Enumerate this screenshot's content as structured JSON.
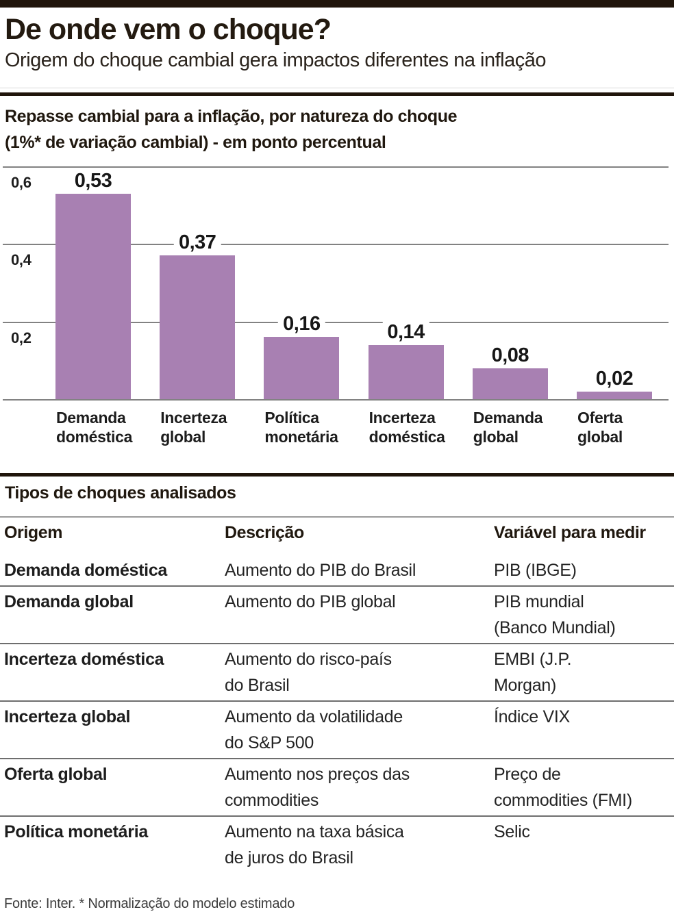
{
  "header": {
    "title": "De onde vem o choque?",
    "subtitle": "Origem do choque cambial gera impactos diferentes na inflação"
  },
  "chart_data": {
    "type": "bar",
    "title": "Repasse cambial para a inflação, por natureza do choque\n(1%* de variação cambial) - em ponto percentual",
    "categories": [
      "Demanda\ndoméstica",
      "Incerteza\nglobal",
      "Política\nmonetária",
      "Incerteza\ndoméstica",
      "Demanda\nglobal",
      "Oferta\nglobal"
    ],
    "values": [
      0.53,
      0.37,
      0.16,
      0.14,
      0.08,
      0.02
    ],
    "value_labels": [
      "0,53",
      "0,37",
      "0,16",
      "0,14",
      "0,08",
      "0,02"
    ],
    "y_ticks": [
      {
        "label": "0,6",
        "value": 0.6
      },
      {
        "label": "0,4",
        "value": 0.4
      },
      {
        "label": "0,2",
        "value": 0.2
      }
    ],
    "ylim": [
      0,
      0.6
    ],
    "grid": true,
    "legend": "none",
    "bar_color": "#a880b2",
    "xlabel": "",
    "ylabel": "em ponto percentual"
  },
  "table": {
    "title": "Tipos de choques analisados",
    "columns": [
      "Origem",
      "Descrição",
      "Variável para medir"
    ],
    "rows": [
      [
        "Demanda doméstica",
        "Aumento do PIB do Brasil",
        "PIB (IBGE)"
      ],
      [
        "Demanda global",
        "Aumento do PIB global",
        "PIB mundial\n(Banco Mundial)"
      ],
      [
        "Incerteza doméstica",
        "Aumento do risco-país\ndo Brasil",
        "EMBI (J.P.\nMorgan)"
      ],
      [
        "Incerteza global",
        "Aumento da volatilidade\ndo S&P 500",
        "Índice VIX"
      ],
      [
        "Oferta global",
        "Aumento nos preços das\ncommodities",
        "Preço de\ncommodities (FMI)"
      ],
      [
        "Política monetária",
        "Aumento na taxa básica\nde juros do Brasil",
        "Selic"
      ]
    ]
  },
  "footer": {
    "source_note": "Fonte: Inter. * Normalização do modelo estimado"
  },
  "colors": {
    "bar": "#a880b2",
    "ink": "#20150b",
    "gridline": "#828282"
  }
}
